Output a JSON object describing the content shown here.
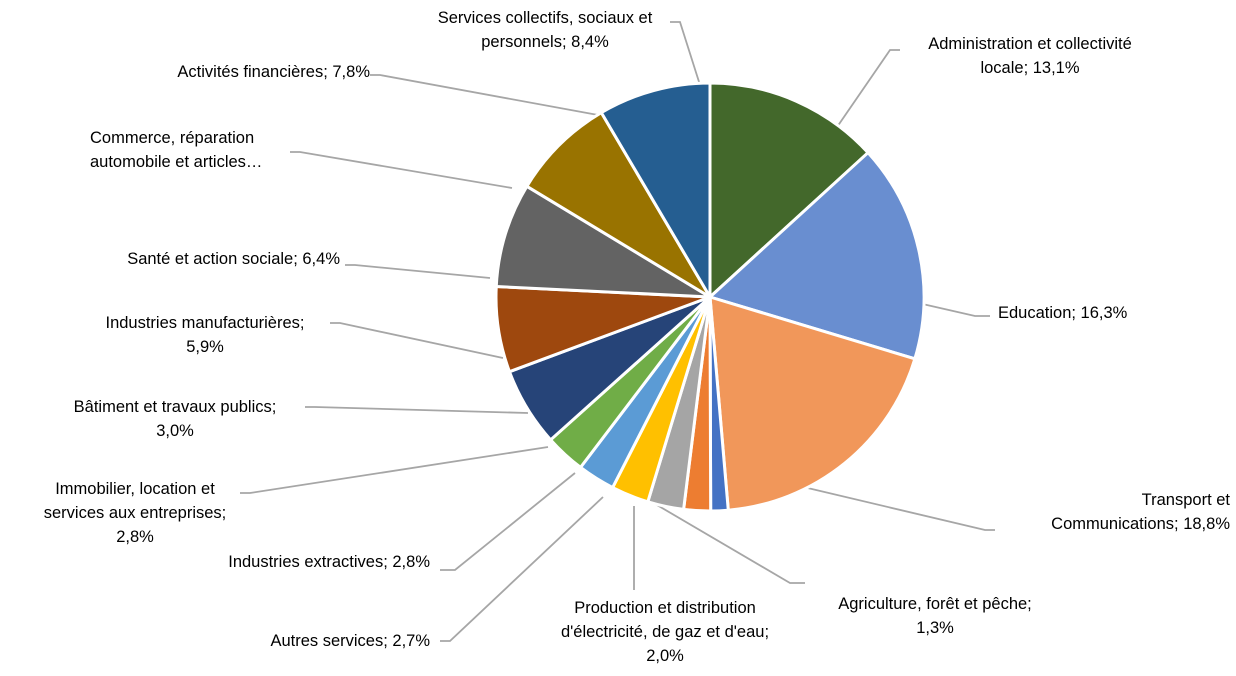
{
  "chart_data": {
    "type": "pie",
    "title": "",
    "legend": "none",
    "series": [
      {
        "values": [
          13.1,
          16.3,
          18.8,
          1.3,
          2.0,
          2.7,
          2.8,
          2.8,
          3.0,
          5.9,
          6.4,
          7.8,
          7.8,
          8.4
        ],
        "categories": [
          "Administration et collectivité locale",
          "Education",
          "Transport et Communications",
          "Agriculture, forêt et pêche",
          "Production et distribution d'électricité, de gaz et d'eau",
          "Autres services",
          "Industries extractives",
          "Immobilier, location et services aux entreprises",
          "Bâtiment et travaux publics",
          "Industries manufacturières",
          "Santé et action sociale",
          "Commerce, réparation automobile et articles…",
          "Activités financières",
          "Services collectifs, sociaux et personnels"
        ],
        "colors": [
          "#43682b",
          "#698ed0",
          "#f1975a",
          "#4472c4",
          "#ed7d31",
          "#a5a5a5",
          "#ffc000",
          "#5b9bd5",
          "#70ad47",
          "#264478",
          "#9e480e",
          "#636363",
          "#997300",
          "#255e91"
        ]
      }
    ],
    "labels": [
      {
        "lines": [
          "Administration et collectivité",
          "locale; 13,1%"
        ],
        "align": "center"
      },
      {
        "lines": [
          "Education; 16,3%"
        ],
        "align": "left"
      },
      {
        "lines": [
          "Transport et",
          "Communications; 18,8%"
        ],
        "align": "right"
      },
      {
        "lines": [
          "Agriculture, forêt et pêche;",
          "1,3%"
        ],
        "align": "center"
      },
      {
        "lines": [
          "Production et distribution",
          "d'électricité, de gaz et d'eau;",
          "2,0%"
        ],
        "align": "center"
      },
      {
        "lines": [
          "Autres services; 2,7%"
        ],
        "align": "right"
      },
      {
        "lines": [
          "Industries extractives; 2,8%"
        ],
        "align": "right"
      },
      {
        "lines": [
          "Immobilier, location et",
          "services aux entreprises;",
          "2,8%"
        ],
        "align": "center"
      },
      {
        "lines": [
          "Bâtiment et travaux publics;",
          "3,0%"
        ],
        "align": "center"
      },
      {
        "lines": [
          "Industries manufacturières;",
          "5,9%"
        ],
        "align": "center"
      },
      {
        "lines": [
          "Santé et action sociale; 6,4%"
        ],
        "align": "right"
      },
      {
        "lines": [
          "Commerce, réparation",
          "automobile et articles…"
        ],
        "align": "left"
      },
      {
        "lines": [
          "Activités financières; 7,8%"
        ],
        "align": "right"
      },
      {
        "lines": [
          "Services collectifs, sociaux et",
          "personnels; 8,4%"
        ],
        "align": "center"
      }
    ]
  }
}
